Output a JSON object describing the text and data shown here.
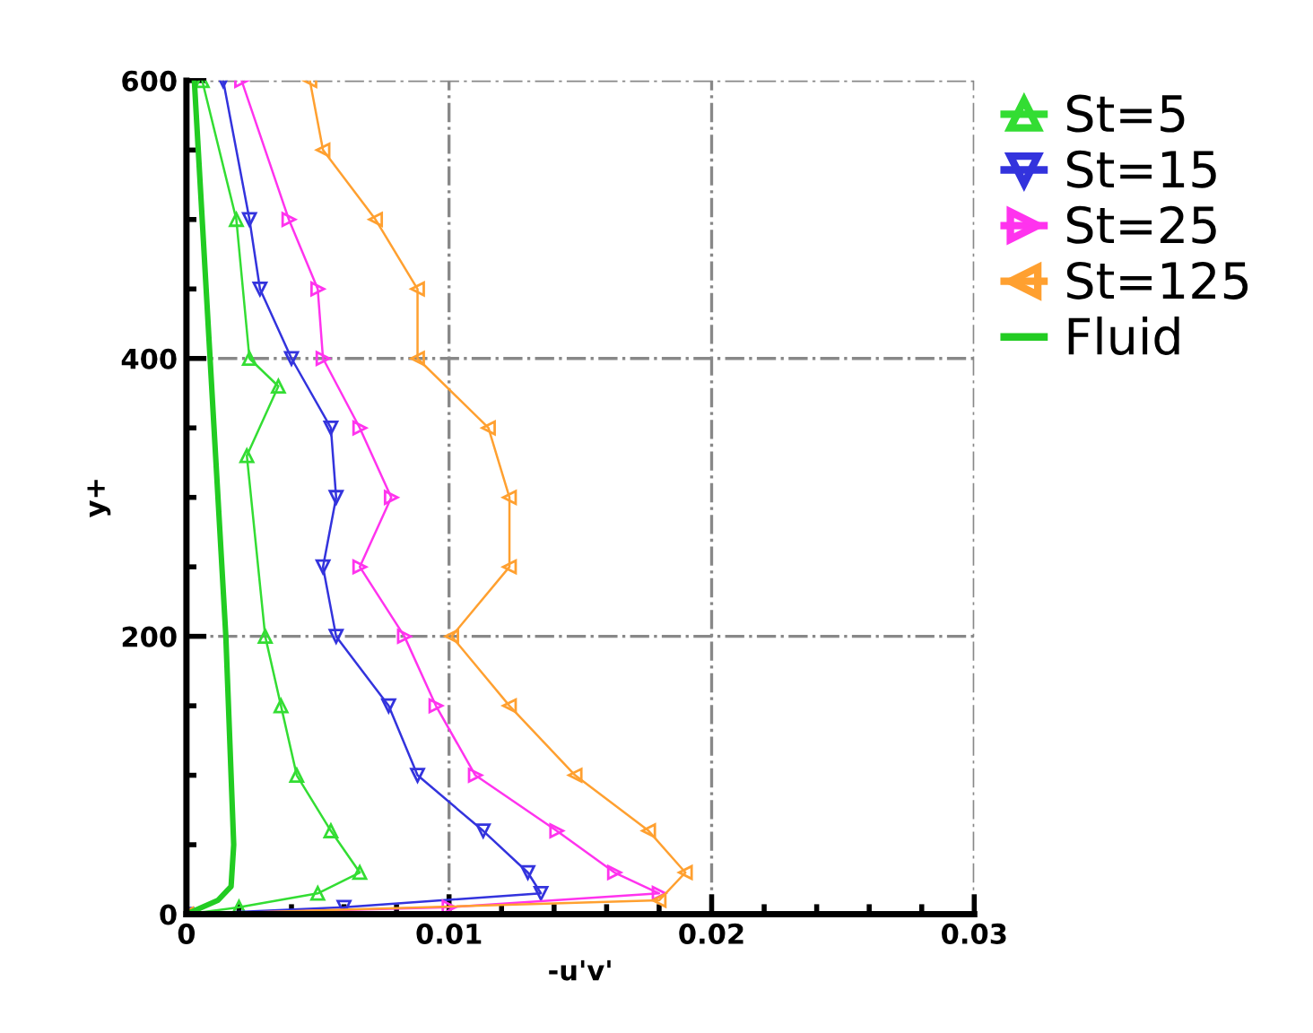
{
  "chart_data": {
    "type": "line",
    "xlabel": "-u'v'",
    "ylabel": "y+",
    "xlim": [
      0,
      0.03
    ],
    "xticks": [
      0,
      0.01,
      0.02,
      0.03
    ],
    "ylim": [
      0,
      600
    ],
    "yticks": [
      0,
      200,
      400,
      600
    ],
    "grid": true,
    "legend": "right",
    "line_style": "solid",
    "series": [
      {
        "name": "St=5",
        "color": "#33dd33",
        "marker": "triangle",
        "x": [
          0,
          0.002,
          0.005,
          0.0066,
          0.0055,
          0.0042,
          0.0036,
          0.003,
          0.0023,
          0.0035,
          0.0024,
          0.0019,
          0.0006
        ],
        "values": [
          0,
          5,
          15,
          30,
          60,
          100,
          150,
          200,
          330,
          380,
          400,
          500,
          600
        ]
      },
      {
        "name": "St=15",
        "color": "#3333dd",
        "marker": "triangle_down",
        "x": [
          0,
          0.006,
          0.0135,
          0.013,
          0.0113,
          0.0088,
          0.0077,
          0.0057,
          0.0052,
          0.0057,
          0.0055,
          0.004,
          0.0028,
          0.0024,
          0.0014
        ],
        "values": [
          0,
          5,
          15,
          30,
          60,
          100,
          150,
          200,
          250,
          300,
          350,
          400,
          450,
          500,
          600
        ]
      },
      {
        "name": "St=25",
        "color": "#ff33ee",
        "marker": "triangle_right",
        "x": [
          0,
          0.01,
          0.018,
          0.0163,
          0.0141,
          0.011,
          0.0095,
          0.0083,
          0.0066,
          0.0078,
          0.0066,
          0.0052,
          0.005,
          0.0039,
          0.0021
        ],
        "values": [
          0,
          5,
          15,
          30,
          60,
          100,
          150,
          200,
          250,
          300,
          350,
          400,
          450,
          500,
          600
        ]
      },
      {
        "name": "St=125",
        "color": "#ffa030",
        "marker": "triangle_left",
        "x": [
          0,
          0.018,
          0.019,
          0.0176,
          0.0148,
          0.0123,
          0.0101,
          0.0123,
          0.0123,
          0.0115,
          0.0088,
          0.0088,
          0.0072,
          0.0052,
          0.0047
        ],
        "values": [
          0,
          10,
          30,
          60,
          100,
          150,
          200,
          250,
          300,
          350,
          400,
          450,
          500,
          550,
          600
        ]
      },
      {
        "name": "Fluid",
        "color": "#22cc22",
        "marker": "none",
        "x": [
          0,
          0.0006,
          0.0012,
          0.0017,
          0.0018,
          0.0015,
          0.0009,
          0.0003
        ],
        "values": [
          0,
          5,
          10,
          20,
          50,
          200,
          400,
          600
        ]
      }
    ]
  }
}
